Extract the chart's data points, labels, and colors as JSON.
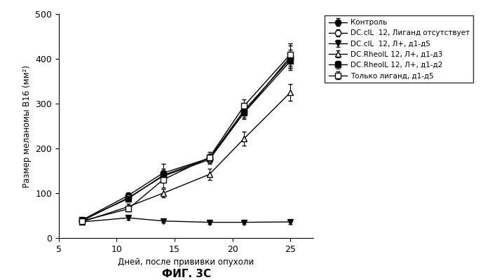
{
  "x": [
    7,
    11,
    14,
    18,
    21,
    25
  ],
  "series": [
    {
      "label": "Контроль",
      "y": [
        40,
        95,
        145,
        178,
        285,
        400
      ],
      "yerr": [
        4,
        7,
        20,
        10,
        12,
        20
      ],
      "marker": "o",
      "markerfacecolor": "black",
      "markeredgecolor": "black",
      "color": "black",
      "markersize": 6
    },
    {
      "label": "DC.cIL  12, Лиганд отсутствует",
      "y": [
        38,
        90,
        138,
        175,
        280,
        405
      ],
      "yerr": [
        4,
        7,
        12,
        10,
        15,
        25
      ],
      "marker": "o",
      "markerfacecolor": "white",
      "markeredgecolor": "black",
      "color": "black",
      "markersize": 6
    },
    {
      "label": "DC.cIL  12, Л+, д1-д5",
      "y": [
        36,
        45,
        38,
        35,
        35,
        36
      ],
      "yerr": [
        3,
        5,
        4,
        3,
        3,
        4
      ],
      "marker": "v",
      "markerfacecolor": "black",
      "markeredgecolor": "black",
      "color": "black",
      "markersize": 6
    },
    {
      "label": "DC.RheoIL 12, Л+, д1-д3",
      "y": [
        36,
        70,
        100,
        142,
        222,
        325
      ],
      "yerr": [
        3,
        6,
        10,
        12,
        15,
        18
      ],
      "marker": "^",
      "markerfacecolor": "white",
      "markeredgecolor": "black",
      "color": "black",
      "markersize": 6
    },
    {
      "label": "DC.RheoIL 12, Л+, д1-д2",
      "y": [
        40,
        88,
        140,
        178,
        280,
        395
      ],
      "yerr": [
        4,
        7,
        15,
        10,
        12,
        20
      ],
      "marker": "s",
      "markerfacecolor": "black",
      "markeredgecolor": "black",
      "color": "black",
      "markersize": 6
    },
    {
      "label": "Только лиганд, д1-д5",
      "y": [
        38,
        65,
        130,
        180,
        295,
        410
      ],
      "yerr": [
        4,
        6,
        18,
        12,
        15,
        25
      ],
      "marker": "s",
      "markerfacecolor": "white",
      "markeredgecolor": "black",
      "color": "black",
      "markersize": 6
    }
  ],
  "xlabel": "Дней, после прививки опухоли",
  "ylabel": "Размер меланомы В16 (мм²)",
  "title": "ФИГ. 3С",
  "xlim": [
    5,
    27
  ],
  "ylim": [
    0,
    500
  ],
  "xticks": [
    5,
    10,
    15,
    20,
    25
  ],
  "yticks": [
    0,
    100,
    200,
    300,
    400,
    500
  ],
  "figsize": [
    6.99,
    4.0
  ],
  "dpi": 100
}
